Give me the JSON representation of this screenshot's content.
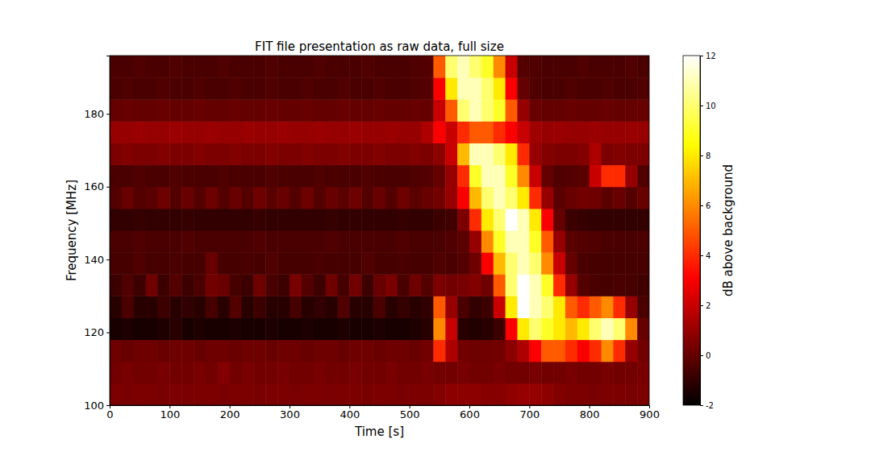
{
  "chart_data": {
    "type": "heatmap",
    "title": "FIT file presentation as raw data, full size",
    "x_label": "Time [s]",
    "y_label": "Frequency [MHz]",
    "xlim": [
      0,
      900
    ],
    "ylim": [
      100,
      196
    ],
    "xticks": [
      0,
      100,
      200,
      300,
      400,
      500,
      600,
      700,
      800,
      900
    ],
    "yticks": [
      100,
      120,
      140,
      160,
      180
    ],
    "grid": false,
    "x_bins": [
      0,
      20,
      40,
      60,
      80,
      100,
      120,
      140,
      160,
      180,
      200,
      220,
      240,
      260,
      280,
      300,
      320,
      340,
      360,
      380,
      400,
      420,
      440,
      460,
      480,
      500,
      520,
      540,
      560,
      580,
      600,
      620,
      640,
      660,
      680,
      700,
      720,
      740,
      760,
      780,
      800,
      820,
      840,
      860,
      880,
      900
    ],
    "y_bins": [
      100,
      106,
      112,
      118,
      124,
      130,
      136,
      142,
      148,
      154,
      160,
      166,
      172,
      178,
      184,
      190,
      196
    ],
    "z": [
      [
        0.5,
        0.4,
        0.5,
        0.5,
        0.4,
        0.5,
        0.4,
        0.5,
        0.5,
        0.4,
        0.5,
        0.5,
        0.4,
        0.5,
        0.5,
        0.4,
        0.5,
        0.5,
        0.4,
        0.5,
        0.5,
        0.4,
        0.5,
        0.5,
        0.4,
        0.5,
        0.5,
        0.6,
        0.8,
        0.8,
        0.8,
        0.7,
        0.7,
        0.9,
        1.0,
        1.0,
        0.8,
        0.6,
        0.5,
        0.5,
        0.4,
        0.5,
        0.5,
        0.4,
        0.5
      ],
      [
        0.3,
        0.4,
        0.3,
        0.3,
        0.4,
        0.3,
        0.3,
        0.4,
        0.3,
        0.6,
        0.3,
        0.4,
        0.3,
        0.3,
        0.4,
        0.3,
        0.3,
        0.4,
        0.3,
        0.3,
        0.4,
        0.3,
        0.3,
        0.4,
        0.3,
        0.3,
        0.4,
        0.3,
        0.3,
        0.4,
        0.3,
        0.3,
        0.4,
        0.3,
        0.3,
        0.4,
        0.3,
        0.3,
        0.4,
        0.3,
        0.3,
        0.4,
        0.3,
        0.3,
        0.4
      ],
      [
        0.2,
        0.1,
        0.2,
        0.2,
        0.1,
        0.2,
        0.2,
        0.1,
        0.2,
        0.2,
        0.1,
        0.2,
        0.2,
        0.1,
        0.2,
        0.2,
        0.1,
        0.2,
        0.2,
        0.1,
        0.2,
        0.2,
        0.1,
        0.2,
        0.2,
        0.1,
        0.3,
        4,
        1.5,
        0.3,
        0.2,
        0.2,
        0.3,
        0.8,
        1.5,
        3,
        5,
        5,
        4,
        3,
        4,
        6,
        4,
        1,
        0.3
      ],
      [
        -1.5,
        -1.4,
        -1.5,
        -1.5,
        -1.4,
        -1.2,
        -1.5,
        -1.4,
        -1.5,
        -1.5,
        -1.4,
        -1.5,
        -1.5,
        -1.4,
        -1.5,
        -1.5,
        -1.4,
        -1.5,
        -1.5,
        -1.4,
        -1.5,
        -1.5,
        -1.4,
        -1.5,
        -1.5,
        -1.4,
        -1.2,
        6,
        2,
        -1.2,
        -1.3,
        -1.2,
        -0.8,
        3,
        8,
        10,
        9,
        8,
        7,
        8,
        10,
        11,
        10,
        6,
        0
      ],
      [
        -1.2,
        -0.5,
        -1.2,
        -1.2,
        -0.8,
        -1.2,
        -1.0,
        -1.2,
        -0.6,
        -1.2,
        -0.3,
        -1.2,
        -0.8,
        -1.2,
        -1.2,
        -0.6,
        -1.2,
        -1.0,
        -1.2,
        -0.4,
        -1.2,
        -1.2,
        -0.5,
        -1.2,
        -0.9,
        -1.2,
        -1.0,
        5,
        1,
        -0.5,
        -1.0,
        -0.8,
        2,
        8,
        12,
        11,
        10,
        8,
        5,
        4,
        5,
        6,
        4,
        1,
        -0.5
      ],
      [
        -0.8,
        -0.4,
        -0.8,
        0.2,
        -0.8,
        -0.3,
        -0.8,
        -0.5,
        0.3,
        0.1,
        -0.6,
        -0.8,
        0.2,
        -0.5,
        -0.8,
        0.4,
        -0.3,
        -0.8,
        0.2,
        -0.6,
        0.3,
        -0.8,
        0.1,
        0.4,
        -0.5,
        0.2,
        -0.3,
        0.5,
        0.3,
        0.4,
        0.6,
        0.2,
        5,
        10,
        12,
        11,
        9,
        4,
        1,
        -0.3,
        -0.5,
        -0.6,
        -0.5,
        -0.6,
        -0.7
      ],
      [
        -0.6,
        -0.6,
        -0.4,
        -0.6,
        -0.6,
        -0.5,
        -0.6,
        -0.6,
        0.1,
        -0.6,
        -0.6,
        -0.5,
        -0.6,
        -0.4,
        -0.6,
        -0.6,
        -0.6,
        -0.5,
        -0.6,
        -0.6,
        -0.6,
        -0.4,
        -0.6,
        -0.6,
        -0.5,
        -0.6,
        -0.6,
        -0.4,
        -0.5,
        -0.3,
        0.2,
        3,
        7,
        10,
        11,
        10,
        6,
        2,
        0,
        -0.5,
        -0.6,
        -0.6,
        -0.6,
        -0.6,
        -0.6
      ],
      [
        -0.5,
        -0.5,
        -0.4,
        -0.5,
        -0.5,
        -0.5,
        -0.4,
        -0.5,
        -0.5,
        -0.5,
        -0.5,
        -0.5,
        -0.4,
        -0.5,
        -0.5,
        -0.5,
        -0.5,
        -0.5,
        -0.4,
        -0.5,
        -0.5,
        -0.5,
        -0.5,
        -0.5,
        -0.4,
        -0.5,
        -0.5,
        -0.5,
        -0.4,
        -0.2,
        1,
        6,
        9,
        11,
        11,
        9,
        5,
        1,
        -0.2,
        -0.3,
        -0.4,
        -0.5,
        -0.5,
        -0.5,
        -0.5
      ],
      [
        -1,
        -1,
        -0.9,
        -1,
        -1,
        -1,
        -0.9,
        -1,
        -1,
        -1,
        -1,
        -1,
        -0.9,
        -1,
        -1,
        -1,
        -1,
        -1,
        -0.9,
        -1,
        -1,
        -1,
        -1,
        -1,
        -0.9,
        -1,
        -1,
        -0.8,
        -0.7,
        0.5,
        4,
        8,
        10,
        12,
        11,
        8,
        3,
        0,
        -0.8,
        -0.9,
        -1,
        -1,
        -1,
        -1,
        -1
      ],
      [
        -0.3,
        0.1,
        -0.3,
        -0.2,
        0.2,
        -0.3,
        0.1,
        -0.3,
        0.2,
        -0.3,
        0.1,
        -0.3,
        0.2,
        -0.2,
        0.1,
        -0.3,
        0.2,
        -0.3,
        0.1,
        -0.2,
        0.2,
        -0.3,
        0.1,
        -0.3,
        0.2,
        -0.2,
        0.1,
        0.3,
        1,
        3,
        7,
        10,
        11,
        10,
        8,
        4,
        1,
        -0.2,
        0.1,
        0.3,
        0.2,
        -0.2,
        0.1,
        -0.3,
        0.1
      ],
      [
        -0.5,
        -0.5,
        -0.4,
        -0.5,
        -0.5,
        -0.4,
        -0.5,
        -0.5,
        -0.5,
        -0.4,
        -0.5,
        -0.5,
        -0.5,
        -0.4,
        -0.5,
        -0.5,
        -0.5,
        -0.4,
        -0.5,
        -0.5,
        -0.5,
        -0.4,
        -0.5,
        -0.5,
        -0.5,
        -0.4,
        -0.3,
        0,
        1,
        4,
        9,
        11,
        11,
        9,
        6,
        2,
        0,
        -0.4,
        -0.3,
        -0.2,
        2,
        4,
        4,
        1,
        -0.4
      ],
      [
        0.5,
        0.6,
        0.5,
        0.5,
        0.6,
        0.5,
        0.5,
        0.6,
        0.5,
        0.5,
        0.6,
        0.5,
        0.5,
        0.6,
        0.5,
        0.5,
        0.6,
        0.5,
        0.5,
        0.6,
        0.5,
        0.5,
        0.6,
        0.5,
        0.5,
        0.6,
        0.5,
        0.8,
        2,
        7,
        11,
        11,
        10,
        8,
        4,
        1,
        0.6,
        0.5,
        0.5,
        0.6,
        1.5,
        0.5,
        0.6,
        0.5,
        0.5
      ],
      [
        1,
        1,
        1.1,
        1,
        1,
        1.1,
        1,
        1,
        1.1,
        1,
        1,
        1.1,
        1,
        1,
        1.1,
        1,
        1,
        1.1,
        1,
        1,
        1.1,
        1,
        1,
        1.1,
        1,
        1,
        1.5,
        3,
        2,
        4,
        5,
        5,
        4,
        3,
        2,
        1.2,
        1,
        1.1,
        1,
        1,
        1.1,
        1,
        1,
        1.1,
        1
      ],
      [
        0,
        0.1,
        0,
        0,
        0.1,
        0,
        0,
        0.1,
        0,
        0,
        0.1,
        0,
        0,
        0.1,
        0,
        0,
        0.1,
        0,
        0,
        0.1,
        0,
        0,
        0.1,
        0,
        0,
        0.1,
        0,
        2,
        5,
        10,
        11,
        10,
        9,
        5,
        1,
        0.1,
        0,
        0,
        0.1,
        0,
        0,
        0.1,
        0,
        0,
        0.1
      ],
      [
        -0.5,
        -0.4,
        -0.5,
        -0.5,
        -0.4,
        -0.5,
        -0.5,
        -0.4,
        -0.5,
        -0.5,
        -0.4,
        -0.5,
        -0.5,
        -0.4,
        -0.5,
        -0.5,
        -0.4,
        -0.5,
        -0.5,
        -0.4,
        -0.5,
        -0.5,
        -0.4,
        -0.5,
        -0.5,
        -0.4,
        -0.3,
        3,
        8,
        11,
        11,
        10,
        8,
        3,
        0,
        -0.4,
        -0.5,
        -0.5,
        -0.4,
        -0.5,
        -0.5,
        -0.4,
        -0.5,
        -0.5,
        -0.4
      ],
      [
        -0.5,
        -0.5,
        -0.4,
        -0.5,
        -0.5,
        -0.4,
        -0.5,
        -0.5,
        -0.5,
        -0.4,
        -0.5,
        -0.5,
        -0.5,
        -0.4,
        -0.5,
        -0.5,
        -0.5,
        -0.4,
        -0.5,
        -0.5,
        -0.5,
        -0.4,
        -0.5,
        -0.5,
        -0.5,
        -0.4,
        -0.3,
        5,
        10,
        11,
        10,
        9,
        6,
        2,
        -0.3,
        -0.4,
        -0.5,
        -0.5,
        -0.5,
        -0.4,
        -0.5,
        -0.5,
        -0.5,
        -0.4,
        -0.5
      ]
    ],
    "colorbar": {
      "label": "dB above background",
      "lim": [
        -2,
        12
      ],
      "ticks": [
        -2,
        0,
        2,
        4,
        6,
        8,
        10,
        12
      ]
    }
  }
}
